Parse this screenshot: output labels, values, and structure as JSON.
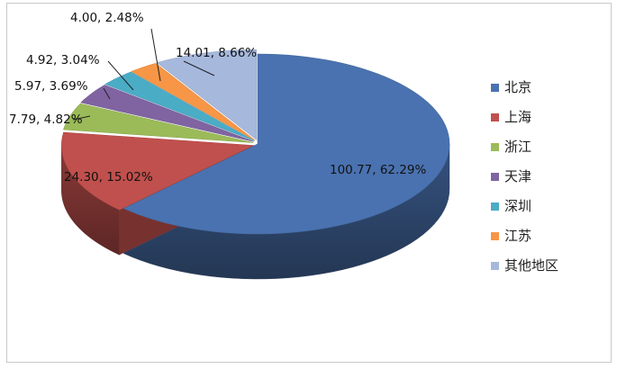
{
  "chart_data": {
    "type": "pie",
    "style": "3d-exploded-slices",
    "categories": [
      "北京",
      "上海",
      "浙江",
      "天津",
      "深圳",
      "江苏",
      "其他地区"
    ],
    "values": [
      100.77,
      24.3,
      7.79,
      5.97,
      4.92,
      4.0,
      14.01
    ],
    "percents": [
      "62.29%",
      "15.02%",
      "4.82%",
      "3.69%",
      "3.04%",
      "2.48%",
      "8.66%"
    ],
    "data_labels": [
      "100.77, 62.29%",
      "24.30, 15.02%",
      "7.79, 4.82%",
      "5.97, 3.69%",
      "4.92, 3.04%",
      "4.00, 2.48%",
      "14.01, 8.66%"
    ],
    "colors": [
      "#4a72b0",
      "#c0504d",
      "#9bbb59",
      "#8064a2",
      "#4bacc6",
      "#f79646",
      "#a6b9dd"
    ],
    "legend": {
      "position": "right"
    }
  }
}
